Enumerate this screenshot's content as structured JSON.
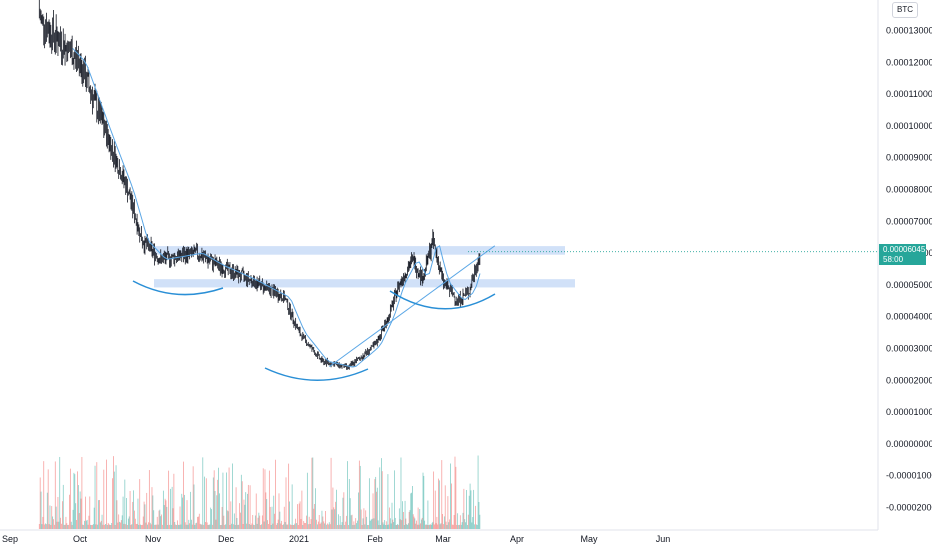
{
  "currency": "BTC",
  "last_price": {
    "value": "0.00006045",
    "countdown": "58:00"
  },
  "colors": {
    "up": "#26a69a",
    "down": "#ef5350",
    "zone": "#c9dcf7",
    "trendline": "#5ba7e6",
    "arc": "#2a8fd6",
    "axis_border": "#e0e3eb"
  },
  "price_axis": {
    "labels": [
      "0.00013000",
      "0.00012000",
      "0.00011000",
      "0.00010000",
      "0.00009000",
      "0.00008000",
      "0.00007000",
      "0.00006000",
      "0.00005000",
      "0.00004000",
      "0.00003000",
      "0.00002000",
      "0.00001000",
      "0.00000000",
      "-0.00001000",
      "-0.00002000"
    ]
  },
  "time_axis": {
    "labels": [
      "Sep",
      "Oct",
      "Nov",
      "Dec",
      "2021",
      "Feb",
      "Mar",
      "Apr",
      "May",
      "Jun"
    ]
  },
  "chart_data": {
    "type": "line",
    "y_unit": "BTC",
    "ylim": [
      -2.3e-05,
      0.000143
    ],
    "x_ticks": [
      "Sep",
      "Oct",
      "Nov",
      "Dec",
      "2021",
      "Feb",
      "Mar",
      "Apr",
      "May",
      "Jun"
    ],
    "series": [
      {
        "values_by_month_position": [
          [
            0.0,
            0.00015
          ],
          [
            0.55,
            0.000131
          ],
          [
            1.0,
            0.00012
          ],
          [
            1.4,
            9.5e-05
          ],
          [
            1.65,
            8e-05
          ],
          [
            1.85,
            6.4e-05
          ],
          [
            2.1,
            5.8e-05
          ],
          [
            2.6,
            6e-05
          ],
          [
            2.9,
            5.6e-05
          ],
          [
            3.3,
            5.2e-05
          ],
          [
            3.8,
            4.6e-05
          ],
          [
            4.0,
            3.5e-05
          ],
          [
            4.3,
            2.6e-05
          ],
          [
            4.65,
            2.4e-05
          ],
          [
            5.0,
            3.1e-05
          ],
          [
            5.2,
            4e-05
          ],
          [
            5.35,
            5e-05
          ],
          [
            5.55,
            5.8e-05
          ],
          [
            5.7,
            5.2e-05
          ],
          [
            5.85,
            6.4e-05
          ],
          [
            6.0,
            5.1e-05
          ],
          [
            6.2,
            4.5e-05
          ],
          [
            6.35,
            4.8e-05
          ],
          [
            6.5,
            6e-05
          ]
        ]
      }
    ],
    "annotations": {
      "resistance_zones": [
        {
          "low": 5.95e-05,
          "high": 6.22e-05
        },
        {
          "low": 4.92e-05,
          "high": 5.18e-05
        }
      ],
      "trendline": {
        "from": [
          4.4,
          2.43e-05
        ],
        "to": [
          6.7,
          6.23e-05
        ]
      }
    },
    "volume_present": true,
    "grid": false
  }
}
